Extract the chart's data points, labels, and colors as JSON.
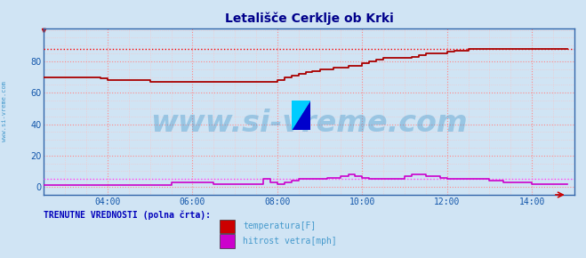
{
  "title": "Letališče Cerklje ob Krki",
  "title_color": "#00008B",
  "title_fontsize": 10,
  "bg_color": "#d0e4f4",
  "plot_bg_color": "#d0e4f4",
  "xlim_hours": [
    2.5,
    14.83
  ],
  "ylim": [
    -5,
    101
  ],
  "yticks": [
    0,
    20,
    40,
    60,
    80
  ],
  "xticks_hours": [
    4,
    6,
    8,
    10,
    12,
    14
  ],
  "xtick_labels": [
    "04:00",
    "06:00",
    "08:00",
    "10:00",
    "12:00",
    "14:00"
  ],
  "grid_color_major": "#ff8888",
  "grid_color_minor": "#ffbbbb",
  "temp_color": "#aa0000",
  "wind_color": "#cc00cc",
  "temp_dotted_color": "#ff0000",
  "wind_dotted_color": "#ff44ff",
  "temp_dotted_y": 88,
  "wind_dotted_y": 5,
  "watermark": "www.si-vreme.com",
  "watermark_color": "#4499cc",
  "watermark_alpha": 0.4,
  "watermark_fontsize": 24,
  "sidebar_text": "www.si-vreme.com",
  "sidebar_color": "#4499cc",
  "legend_title": "TRENUTNE VREDNOSTI (polna črta):",
  "legend_title_color": "#0000bb",
  "legend_entries": [
    "temperatura[F]",
    "hitrost vetra[mph]"
  ],
  "legend_colors": [
    "#cc0000",
    "#cc00cc"
  ],
  "temp_data_x": [
    2.5,
    2.83,
    3.17,
    3.5,
    3.83,
    4.0,
    4.33,
    4.67,
    5.0,
    5.33,
    5.67,
    5.83,
    6.0,
    6.33,
    6.67,
    7.0,
    7.33,
    7.67,
    7.83,
    8.0,
    8.17,
    8.33,
    8.5,
    8.67,
    8.83,
    9.0,
    9.33,
    9.67,
    10.0,
    10.17,
    10.33,
    10.5,
    10.67,
    10.83,
    11.0,
    11.17,
    11.33,
    11.5,
    11.67,
    11.83,
    12.0,
    12.17,
    12.33,
    12.5,
    12.67,
    12.83,
    13.0,
    13.33,
    13.67,
    14.0,
    14.33,
    14.67,
    14.83
  ],
  "temp_data_y": [
    70,
    70,
    70,
    70,
    69,
    68,
    68,
    68,
    67,
    67,
    67,
    67,
    67,
    67,
    67,
    67,
    67,
    67,
    67,
    68,
    70,
    71,
    72,
    73,
    74,
    75,
    76,
    77,
    79,
    80,
    81,
    82,
    82,
    82,
    82,
    83,
    84,
    85,
    85,
    85,
    86,
    87,
    87,
    88,
    88,
    88,
    88,
    88,
    88,
    88,
    88,
    88,
    88
  ],
  "wind_data_x": [
    2.5,
    3.0,
    3.5,
    4.0,
    4.5,
    5.0,
    5.5,
    5.83,
    6.0,
    6.5,
    7.0,
    7.5,
    7.67,
    7.83,
    8.0,
    8.17,
    8.33,
    8.5,
    8.67,
    8.83,
    9.0,
    9.17,
    9.33,
    9.5,
    9.67,
    9.83,
    10.0,
    10.17,
    10.5,
    10.67,
    11.0,
    11.17,
    11.5,
    11.67,
    11.83,
    12.0,
    12.17,
    12.5,
    13.0,
    13.33,
    13.5,
    13.67,
    14.0,
    14.33,
    14.5,
    14.67,
    14.83
  ],
  "wind_data_y": [
    1,
    1,
    1,
    1,
    1,
    1,
    3,
    3,
    3,
    2,
    2,
    2,
    5,
    3,
    2,
    3,
    4,
    5,
    5,
    5,
    5,
    6,
    6,
    7,
    8,
    7,
    6,
    5,
    5,
    5,
    7,
    8,
    7,
    7,
    6,
    5,
    5,
    5,
    4,
    3,
    3,
    3,
    2,
    2,
    2,
    2,
    2
  ]
}
